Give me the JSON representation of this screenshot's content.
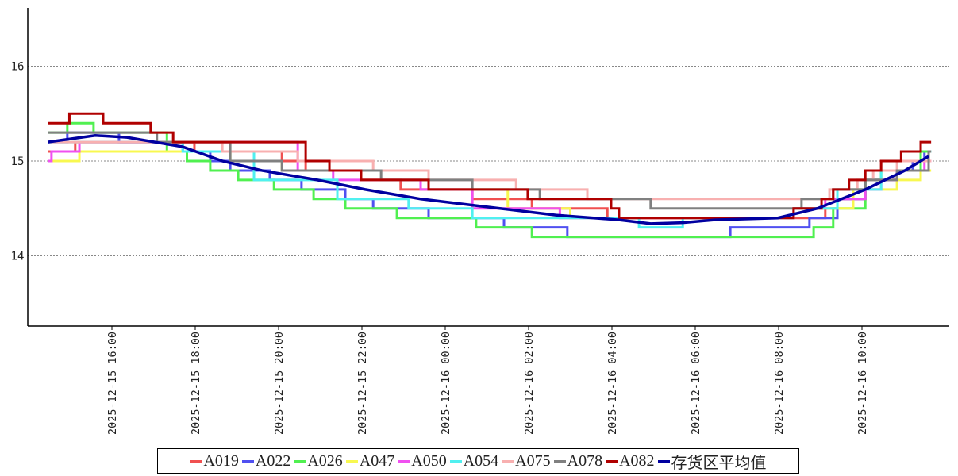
{
  "chart_data": {
    "type": "line",
    "title": "",
    "xlabel": "",
    "ylabel": "",
    "x_unit": "hours since 2025-12-15 00:00",
    "xlim": [
      14.46,
      35.66
    ],
    "ylim": [
      13.27,
      16.62
    ],
    "grid": "horizontal dotted",
    "legend_position": "bottom",
    "y_ticks": [
      {
        "value": 14,
        "label": "14"
      },
      {
        "value": 15,
        "label": "15"
      },
      {
        "value": 16,
        "label": "16"
      }
    ],
    "x_ticks": [
      {
        "value": 16,
        "label": "2025-12-15 16:00"
      },
      {
        "value": 18,
        "label": "2025-12-15 18:00"
      },
      {
        "value": 20,
        "label": "2025-12-15 20:00"
      },
      {
        "value": 22,
        "label": "2025-12-15 22:00"
      },
      {
        "value": 24,
        "label": "2025-12-16 00:00"
      },
      {
        "value": 26,
        "label": "2025-12-16 02:00"
      },
      {
        "value": 28,
        "label": "2025-12-16 04:00"
      },
      {
        "value": 30,
        "label": "2025-12-16 06:00"
      },
      {
        "value": 32,
        "label": "2025-12-16 08:00"
      },
      {
        "value": 34,
        "label": "2025-12-16 10:00"
      }
    ],
    "series": [
      {
        "name": "A019",
        "color": "#f05050",
        "step": true,
        "points": [
          [
            14.46,
            15.1
          ],
          [
            15.12,
            15.2
          ],
          [
            17.98,
            15.1
          ],
          [
            20.08,
            15.0
          ],
          [
            20.65,
            14.9
          ],
          [
            21.98,
            14.8
          ],
          [
            22.93,
            14.7
          ],
          [
            24.65,
            14.6
          ],
          [
            26.08,
            14.5
          ],
          [
            27.89,
            14.4
          ],
          [
            33.12,
            14.5
          ],
          [
            33.41,
            14.6
          ],
          [
            34.08,
            14.8
          ],
          [
            34.84,
            14.9
          ],
          [
            35.22,
            15.0
          ]
        ]
      },
      {
        "name": "A022",
        "color": "#5050f0",
        "step": true,
        "points": [
          [
            14.46,
            15.2
          ],
          [
            14.93,
            15.3
          ],
          [
            16.17,
            15.2
          ],
          [
            17.7,
            15.1
          ],
          [
            18.36,
            15.0
          ],
          [
            18.84,
            14.9
          ],
          [
            19.79,
            14.8
          ],
          [
            20.55,
            14.7
          ],
          [
            21.6,
            14.6
          ],
          [
            22.27,
            14.5
          ],
          [
            23.6,
            14.4
          ],
          [
            25.41,
            14.3
          ],
          [
            26.93,
            14.2
          ],
          [
            30.84,
            14.3
          ],
          [
            32.74,
            14.4
          ],
          [
            33.41,
            14.6
          ],
          [
            34.08,
            14.8
          ],
          [
            34.84,
            14.9
          ],
          [
            35.22,
            15.0
          ],
          [
            35.5,
            15.1
          ]
        ]
      },
      {
        "name": "A026",
        "color": "#50f050",
        "step": true,
        "points": [
          [
            14.46,
            15.3
          ],
          [
            14.93,
            15.4
          ],
          [
            15.56,
            15.3
          ],
          [
            17.32,
            15.1
          ],
          [
            17.8,
            15.0
          ],
          [
            18.36,
            14.9
          ],
          [
            19.03,
            14.8
          ],
          [
            19.89,
            14.7
          ],
          [
            20.84,
            14.6
          ],
          [
            21.6,
            14.5
          ],
          [
            22.84,
            14.4
          ],
          [
            24.74,
            14.3
          ],
          [
            26.08,
            14.2
          ],
          [
            32.84,
            14.3
          ],
          [
            33.31,
            14.5
          ],
          [
            34.08,
            14.8
          ],
          [
            34.46,
            14.9
          ],
          [
            35.41,
            15.1
          ]
        ]
      },
      {
        "name": "A047",
        "color": "#f8f850",
        "step": true,
        "points": [
          [
            14.46,
            15.0
          ],
          [
            15.22,
            15.1
          ],
          [
            18.84,
            15.0
          ],
          [
            20.08,
            14.9
          ],
          [
            21.98,
            14.8
          ],
          [
            23.6,
            14.7
          ],
          [
            25.5,
            14.5
          ],
          [
            27.0,
            14.4
          ],
          [
            28.0,
            14.4
          ],
          [
            32.36,
            14.5
          ],
          [
            33.79,
            14.7
          ],
          [
            34.84,
            14.8
          ],
          [
            35.41,
            14.9
          ]
        ]
      },
      {
        "name": "A050",
        "color": "#f050f0",
        "step": true,
        "points": [
          [
            14.46,
            15.0
          ],
          [
            14.55,
            15.1
          ],
          [
            15.22,
            15.2
          ],
          [
            20.46,
            14.9
          ],
          [
            21.31,
            14.8
          ],
          [
            23.41,
            14.7
          ],
          [
            24.65,
            14.5
          ],
          [
            26.75,
            14.4
          ],
          [
            32.36,
            14.5
          ],
          [
            33.12,
            14.6
          ],
          [
            34.08,
            14.7
          ],
          [
            34.46,
            14.8
          ],
          [
            34.84,
            14.9
          ],
          [
            35.5,
            15.0
          ]
        ]
      },
      {
        "name": "A054",
        "color": "#50f0f0",
        "step": true,
        "points": [
          [
            14.46,
            15.2
          ],
          [
            17.7,
            15.1
          ],
          [
            19.41,
            14.8
          ],
          [
            21.41,
            14.6
          ],
          [
            23.12,
            14.5
          ],
          [
            24.65,
            14.4
          ],
          [
            28.65,
            14.3
          ],
          [
            29.7,
            14.4
          ],
          [
            32.36,
            14.5
          ],
          [
            33.41,
            14.7
          ],
          [
            34.46,
            14.9
          ],
          [
            35.6,
            15.1
          ]
        ]
      },
      {
        "name": "A075",
        "color": "#f8b0b0",
        "step": true,
        "points": [
          [
            14.46,
            15.2
          ],
          [
            18.65,
            15.1
          ],
          [
            20.46,
            15.0
          ],
          [
            22.27,
            14.9
          ],
          [
            23.6,
            14.8
          ],
          [
            25.7,
            14.7
          ],
          [
            27.41,
            14.6
          ],
          [
            33.22,
            14.7
          ],
          [
            33.89,
            14.8
          ],
          [
            34.27,
            14.9
          ],
          [
            34.84,
            15.0
          ]
        ]
      },
      {
        "name": "A078",
        "color": "#808080",
        "step": true,
        "points": [
          [
            14.46,
            15.3
          ],
          [
            17.08,
            15.2
          ],
          [
            18.84,
            15.0
          ],
          [
            20.08,
            14.9
          ],
          [
            22.46,
            14.8
          ],
          [
            24.65,
            14.7
          ],
          [
            26.27,
            14.6
          ],
          [
            28.93,
            14.5
          ],
          [
            32.55,
            14.6
          ],
          [
            33.31,
            14.7
          ],
          [
            34.08,
            14.8
          ],
          [
            34.84,
            14.9
          ],
          [
            35.6,
            15.1
          ]
        ]
      },
      {
        "name": "A082",
        "color": "#b00000",
        "step": true,
        "points": [
          [
            14.46,
            15.4
          ],
          [
            14.98,
            15.5
          ],
          [
            15.79,
            15.4
          ],
          [
            16.93,
            15.3
          ],
          [
            17.47,
            15.2
          ],
          [
            20.65,
            15.0
          ],
          [
            21.22,
            14.9
          ],
          [
            21.98,
            14.8
          ],
          [
            23.6,
            14.7
          ],
          [
            25.98,
            14.6
          ],
          [
            27.98,
            14.5
          ],
          [
            28.17,
            14.4
          ],
          [
            32.36,
            14.5
          ],
          [
            33.03,
            14.6
          ],
          [
            33.31,
            14.7
          ],
          [
            33.69,
            14.8
          ],
          [
            34.08,
            14.9
          ],
          [
            34.46,
            15.0
          ],
          [
            34.94,
            15.1
          ],
          [
            35.41,
            15.2
          ]
        ]
      },
      {
        "name": "存货区平均值",
        "color": "#0000a0",
        "step": false,
        "points": [
          [
            14.46,
            15.2
          ],
          [
            15.6,
            15.27
          ],
          [
            16.36,
            15.25
          ],
          [
            17.7,
            15.15
          ],
          [
            18.65,
            15.0
          ],
          [
            19.6,
            14.9
          ],
          [
            20.93,
            14.8
          ],
          [
            22.08,
            14.7
          ],
          [
            23.41,
            14.6
          ],
          [
            25.31,
            14.5
          ],
          [
            26.65,
            14.43
          ],
          [
            28.17,
            14.38
          ],
          [
            28.93,
            14.34
          ],
          [
            29.7,
            14.35
          ],
          [
            30.46,
            14.38
          ],
          [
            31.98,
            14.4
          ],
          [
            32.93,
            14.5
          ],
          [
            34.08,
            14.7
          ],
          [
            35.03,
            14.9
          ],
          [
            35.6,
            15.05
          ]
        ]
      }
    ]
  }
}
